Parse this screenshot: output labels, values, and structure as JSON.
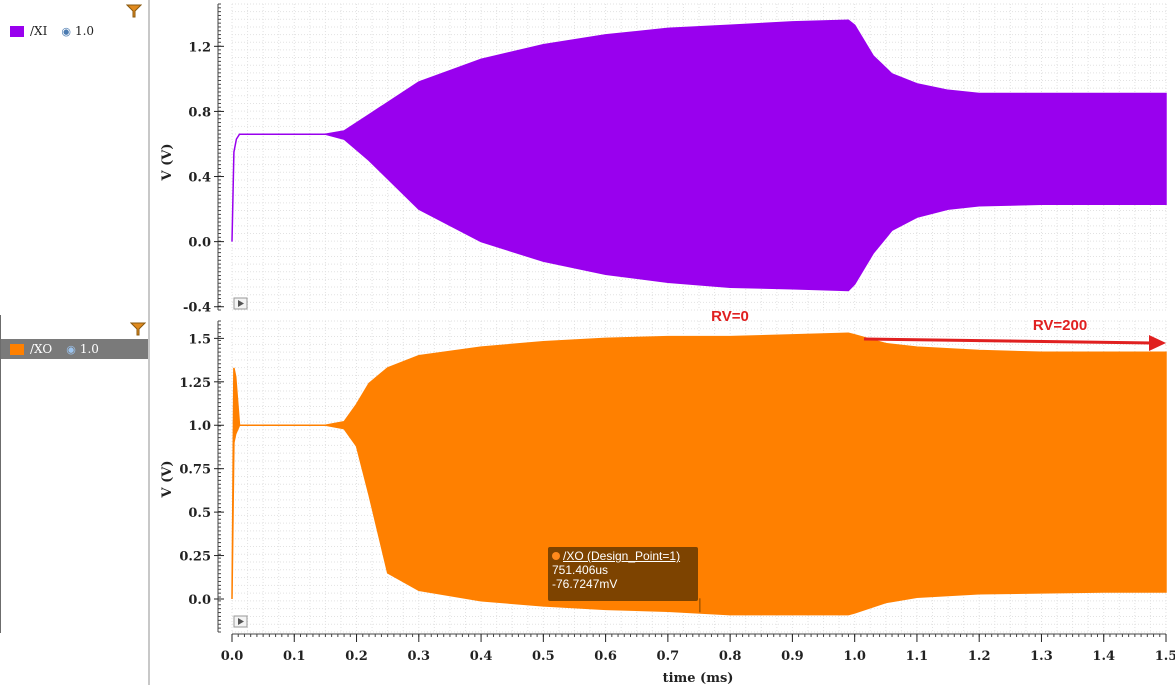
{
  "left_panel": {
    "traces": [
      {
        "name": "/XI",
        "visibility_value": "1.0",
        "color": "#9900ee",
        "selected": false
      },
      {
        "name": "/XO",
        "visibility_value": "1.0",
        "color": "#ff8000",
        "selected": true
      }
    ],
    "icons": {
      "filter": "filter-icon",
      "visibility": "eye-icon"
    }
  },
  "tooltip": {
    "title": "/XO (Design_Point=1)",
    "x_value": "751.406us",
    "y_value": "-76.7247mV"
  },
  "annotations": {
    "rv0": "RV=0",
    "rv200": "RV=200",
    "arrow_color": "#e02020"
  },
  "chart_data": [
    {
      "type": "area",
      "name": "/XI",
      "color": "#9900ee",
      "ylabel": "V (V)",
      "xlim": [
        0,
        1.5
      ],
      "ylim": [
        -0.42,
        1.46
      ],
      "yticks": [
        -0.4,
        0.0,
        0.4,
        0.8,
        1.2
      ],
      "ytick_labels": [
        "-0.4",
        "0.0",
        "0.4",
        "0.8",
        "1.2"
      ],
      "grid": true,
      "envelope": {
        "x": [
          0.0,
          0.003,
          0.007,
          0.012,
          0.05,
          0.15,
          0.18,
          0.22,
          0.3,
          0.4,
          0.5,
          0.6,
          0.7,
          0.8,
          0.9,
          0.99,
          1.0,
          1.03,
          1.06,
          1.1,
          1.15,
          1.2,
          1.3,
          1.4,
          1.5
        ],
        "upper": [
          0.0,
          0.55,
          0.63,
          0.66,
          0.66,
          0.66,
          0.68,
          0.78,
          0.98,
          1.12,
          1.21,
          1.27,
          1.31,
          1.33,
          1.35,
          1.36,
          1.33,
          1.14,
          1.03,
          0.97,
          0.93,
          0.91,
          0.91,
          0.91,
          0.91
        ],
        "lower": [
          0.0,
          0.55,
          0.63,
          0.66,
          0.66,
          0.66,
          0.63,
          0.5,
          0.2,
          0.0,
          -0.12,
          -0.2,
          -0.25,
          -0.28,
          -0.29,
          -0.3,
          -0.26,
          -0.07,
          0.07,
          0.15,
          0.2,
          0.22,
          0.23,
          0.23,
          0.23
        ]
      }
    },
    {
      "type": "area",
      "name": "/XO",
      "color": "#ff8000",
      "ylabel": "V (V)",
      "xlabel": "time (ms)",
      "xlim": [
        0,
        1.5
      ],
      "ylim": [
        -0.19,
        1.6
      ],
      "yticks": [
        0.0,
        0.25,
        0.5,
        0.75,
        1.0,
        1.25,
        1.5
      ],
      "ytick_labels": [
        "0.0",
        "0.25",
        "0.5",
        "0.75",
        "1.0",
        "1.25",
        "1.5"
      ],
      "xticks": [
        0.0,
        0.1,
        0.2,
        0.3,
        0.4,
        0.5,
        0.6,
        0.7,
        0.8,
        0.9,
        1.0,
        1.1,
        1.2,
        1.3,
        1.4,
        1.5
      ],
      "xtick_labels": [
        "0.0",
        "0.1",
        "0.2",
        "0.3",
        "0.4",
        "0.5",
        "0.6",
        "0.7",
        "0.8",
        "0.9",
        "1.0",
        "1.1",
        "1.2",
        "1.3",
        "1.4",
        "1.5"
      ],
      "grid": true,
      "envelope": {
        "x": [
          0.0,
          0.003,
          0.006,
          0.012,
          0.05,
          0.15,
          0.18,
          0.2,
          0.22,
          0.25,
          0.3,
          0.4,
          0.5,
          0.6,
          0.7,
          0.8,
          0.9,
          0.99,
          1.0,
          1.05,
          1.1,
          1.2,
          1.3,
          1.4,
          1.5
        ],
        "upper": [
          0.0,
          1.33,
          1.28,
          1.0,
          1.0,
          1.0,
          1.02,
          1.12,
          1.24,
          1.33,
          1.4,
          1.45,
          1.48,
          1.5,
          1.51,
          1.51,
          1.52,
          1.53,
          1.52,
          1.47,
          1.45,
          1.43,
          1.42,
          1.42,
          1.42
        ],
        "lower": [
          0.0,
          0.9,
          0.95,
          1.0,
          1.0,
          1.0,
          0.98,
          0.88,
          0.6,
          0.15,
          0.05,
          -0.01,
          -0.04,
          -0.06,
          -0.07,
          -0.09,
          -0.09,
          -0.09,
          -0.08,
          -0.02,
          0.01,
          0.03,
          0.035,
          0.04,
          0.04
        ]
      },
      "cursor": {
        "x_us": 751.406,
        "y_mV": -76.7247
      }
    }
  ]
}
